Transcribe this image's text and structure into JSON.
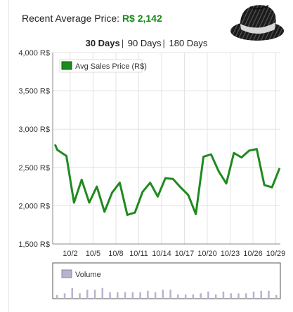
{
  "header": {
    "label": "Recent Average Price:",
    "value": "R$ 2,142"
  },
  "range_tabs": [
    {
      "label": "30 Days",
      "active": true
    },
    {
      "label": "90 Days",
      "active": false
    },
    {
      "label": "180 Days",
      "active": false
    }
  ],
  "item_image": {
    "icon": "fedora-hat-icon"
  },
  "colors": {
    "price_line": "#1f8a1f",
    "volume_bar": "#b9b2cf",
    "grid": "#e4e4e4"
  },
  "chart_data": [
    {
      "type": "line",
      "legend": [
        "Avg Sales Price (R$)"
      ],
      "legend_position": "top-left",
      "grid": true,
      "ylim": [
        1500,
        4000
      ],
      "yticks": [
        "4,000 R$",
        "3,500 R$",
        "3,000 R$",
        "2,500 R$",
        "2,000 R$",
        "1,500 R$"
      ],
      "ytick_values": [
        4000,
        3500,
        3000,
        2500,
        2000,
        1500
      ],
      "xticks": [
        "10/2",
        "10/5",
        "10/8",
        "10/11",
        "10/14",
        "10/17",
        "10/20",
        "10/23",
        "10/26",
        "10/29"
      ],
      "xtick_values": [
        2,
        5,
        8,
        11,
        14,
        17,
        20,
        23,
        26,
        29
      ],
      "xlim": [
        -0.3,
        29.6
      ],
      "x": [
        0,
        0.3,
        1.5,
        2.5,
        3.5,
        4.5,
        5.5,
        6.5,
        7.5,
        8.5,
        9.5,
        10.5,
        11.5,
        12.5,
        13.5,
        14.5,
        15.5,
        16.5,
        17.5,
        18.5,
        19.5,
        20.5,
        21.5,
        22.5,
        23.5,
        24.5,
        25.5,
        26.5,
        27.5,
        28.5,
        29.5
      ],
      "series": [
        {
          "name": "Avg Sales Price (R$)",
          "values": [
            2800,
            2730,
            2650,
            2040,
            2340,
            2040,
            2250,
            1920,
            2170,
            2300,
            1880,
            1910,
            2180,
            2300,
            2120,
            2360,
            2350,
            2240,
            2140,
            1890,
            2640,
            2670,
            2450,
            2290,
            2690,
            2630,
            2720,
            2740,
            2270,
            2240,
            2490
          ]
        }
      ]
    },
    {
      "type": "bar",
      "legend": [
        "Volume"
      ],
      "legend_position": "top-left",
      "x": [
        0,
        1,
        2,
        3,
        4,
        5,
        6,
        7,
        8,
        9,
        10,
        11,
        12,
        13,
        14,
        15,
        16,
        17,
        18,
        19,
        20,
        21,
        22,
        23,
        24,
        25,
        26,
        27,
        28,
        29
      ],
      "ylim": [
        0,
        10
      ],
      "series": [
        {
          "name": "Volume",
          "values": [
            1,
            1.5,
            3,
            1.5,
            2.5,
            2.5,
            3,
            1.8,
            1.8,
            1.8,
            1.8,
            1.8,
            2.2,
            1.8,
            2.5,
            2.5,
            1.2,
            1.2,
            1.2,
            1.5,
            2,
            1.2,
            2,
            1.5,
            1.5,
            1.5,
            2,
            2.2,
            2.2,
            1
          ]
        }
      ]
    }
  ]
}
